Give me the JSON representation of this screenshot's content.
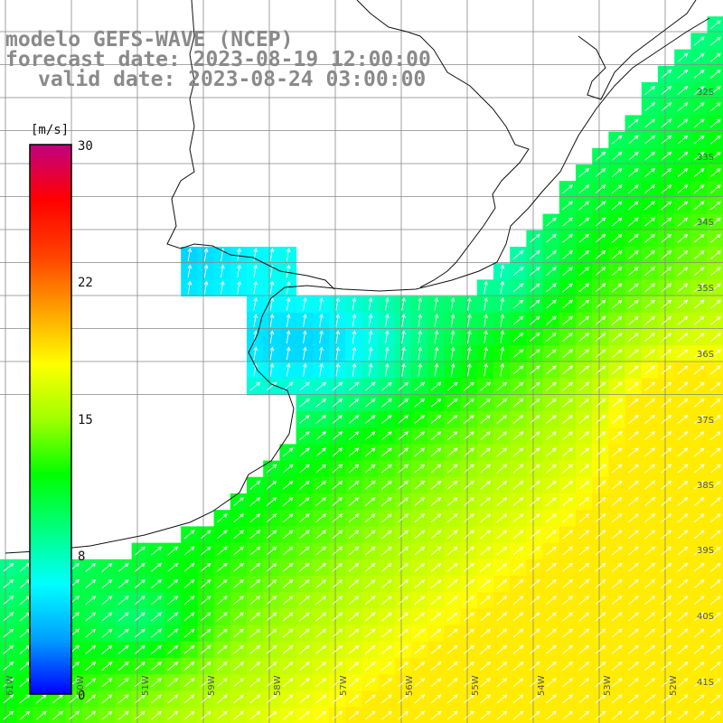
{
  "title": {
    "line1": "modelo GEFS-WAVE (NCEP)",
    "line2": "forecast date: 2023-08-19 12:00:00",
    "line3": "valid date: 2023-08-24 03:00:00"
  },
  "colorbar": {
    "unit": "[m/s]",
    "ticks": [
      "30",
      "22",
      "15",
      "8",
      "0"
    ],
    "colors": [
      "#0000ff",
      "#00a0ff",
      "#00ffff",
      "#00ff80",
      "#00ff00",
      "#a0ff00",
      "#ffff00",
      "#ffa000",
      "#ff4000",
      "#ff0000",
      "#c00080"
    ]
  },
  "lat_labels": [
    "32S",
    "33S",
    "34S",
    "35S",
    "36S",
    "37S",
    "38S",
    "39S",
    "40S",
    "41S"
  ],
  "lon_labels": [
    "61W",
    "60W",
    "59W",
    "58W",
    "57W",
    "56W",
    "55W",
    "54W",
    "53W",
    "52W",
    "51W"
  ]
}
